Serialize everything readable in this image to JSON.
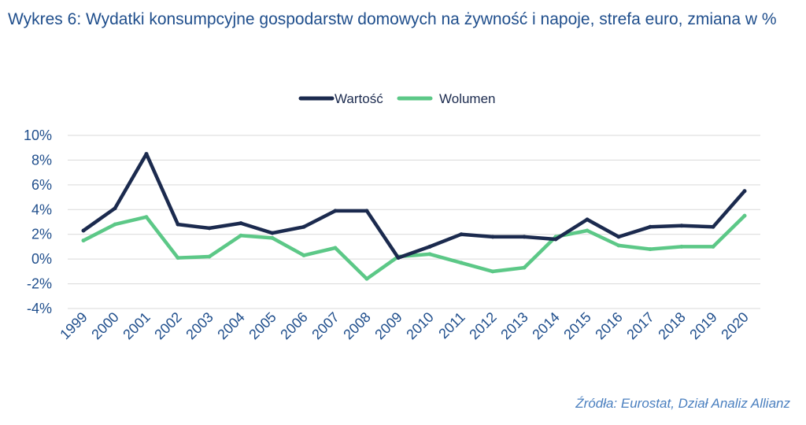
{
  "title": "Wykres 6: Wydatki konsumpcyjne gospodarstw domowych na żywność i napoje, strefa euro, zmiana w %",
  "source": "Źródła: Eurostat, Dział Analiz Allianz",
  "colors": {
    "series_wartosc": "#1b2a4e",
    "series_wolumen": "#5cc887",
    "axis_text": "#1f4e8c",
    "grid": "#d9d9d9"
  },
  "chart_data": {
    "type": "line",
    "x": [
      "1999",
      "2000",
      "2001",
      "2002",
      "2003",
      "2004",
      "2005",
      "2006",
      "2007",
      "2008",
      "2009",
      "2010",
      "2011",
      "2012",
      "2013",
      "2014",
      "2015",
      "2016",
      "2017",
      "2018",
      "2019",
      "2020"
    ],
    "series": [
      {
        "name": "Wartość",
        "values": [
          2.3,
          4.1,
          8.5,
          2.8,
          2.5,
          2.9,
          2.1,
          2.6,
          3.9,
          3.9,
          0.1,
          1.0,
          2.0,
          1.8,
          1.8,
          1.6,
          3.2,
          1.8,
          2.6,
          2.7,
          2.6,
          5.5
        ]
      },
      {
        "name": "Wolumen",
        "values": [
          1.5,
          2.8,
          3.4,
          0.1,
          0.2,
          1.9,
          1.7,
          0.3,
          0.9,
          -1.6,
          0.2,
          0.4,
          -0.3,
          -1.0,
          -0.7,
          1.8,
          2.3,
          1.1,
          0.8,
          1.0,
          1.0,
          3.5
        ]
      }
    ],
    "yticks": [
      "-4%",
      "-2%",
      "0%",
      "2%",
      "4%",
      "6%",
      "8%",
      "10%"
    ],
    "ylim": [
      -4,
      10
    ],
    "grid": true,
    "legend": "top-center"
  }
}
